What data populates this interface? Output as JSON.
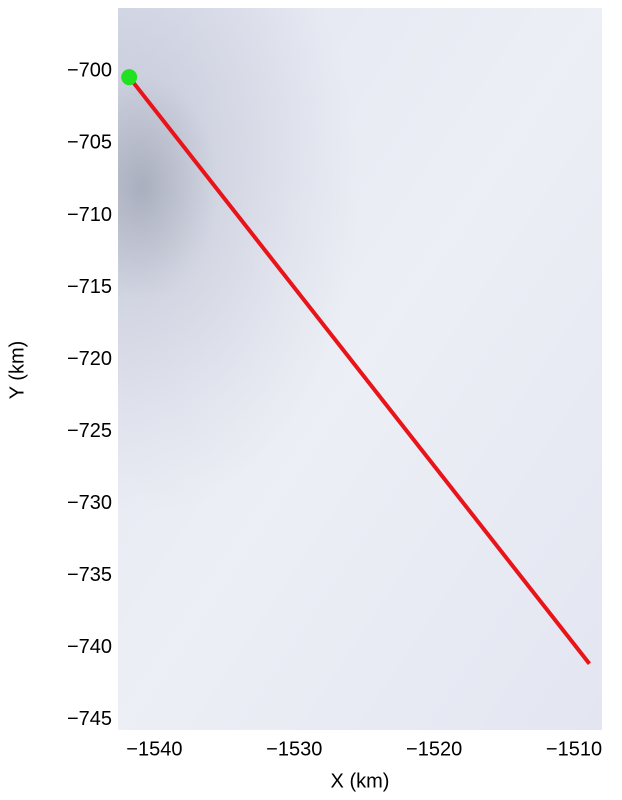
{
  "chart_data": {
    "type": "line",
    "xlabel": "X (km)",
    "ylabel": "Y (km)",
    "xlim": [
      -1542.6,
      -1508
    ],
    "ylim": [
      -745.7,
      -695.6
    ],
    "xticks": [
      {
        "value": -1540,
        "label": "−1540"
      },
      {
        "value": -1530,
        "label": "−1530"
      },
      {
        "value": -1520,
        "label": "−1520"
      },
      {
        "value": -1510,
        "label": "−1510"
      }
    ],
    "yticks": [
      {
        "value": -700,
        "label": "−700"
      },
      {
        "value": -705,
        "label": "−705"
      },
      {
        "value": -710,
        "label": "−710"
      },
      {
        "value": -715,
        "label": "−715"
      },
      {
        "value": -720,
        "label": "−720"
      },
      {
        "value": -725,
        "label": "−725"
      },
      {
        "value": -730,
        "label": "−730"
      },
      {
        "value": -735,
        "label": "−735"
      },
      {
        "value": -740,
        "label": "−740"
      },
      {
        "value": -745,
        "label": "−745"
      }
    ],
    "series": [
      {
        "color": "#e8141a",
        "marker": "line",
        "x": [
          -1541.8,
          -1508.9
        ],
        "values": [
          -700.4,
          -741.1
        ]
      },
      {
        "color": "#22e022",
        "marker": "point",
        "x": [
          -1541.8
        ],
        "values": [
          -700.4
        ]
      }
    ]
  }
}
